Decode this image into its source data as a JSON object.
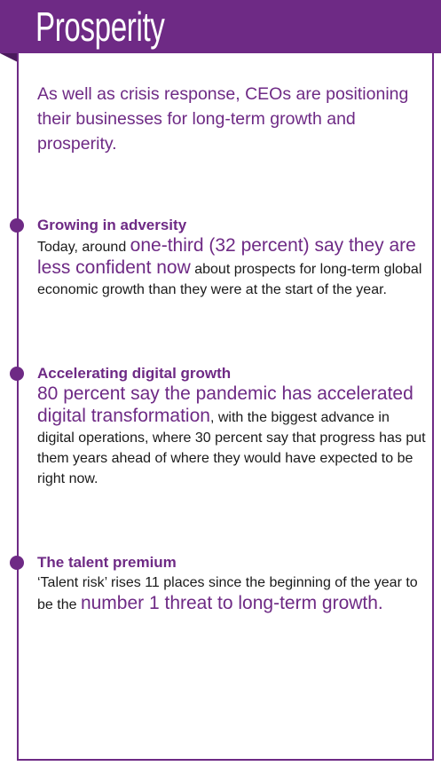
{
  "header": {
    "title": "Prosperity"
  },
  "intro": "As well as crisis response, CEOs are positioning their businesses for long-term growth and prosperity.",
  "sections": [
    {
      "title": "Growing in adversity",
      "pre": "Today, around ",
      "highlight": "one-third (32 percent) say they are less confident now",
      "post": " about prospects for long-term global economic growth than they were at the start of the year."
    },
    {
      "title": "Accelerating digital growth",
      "pre": "",
      "highlight": "80 percent say the pandemic has accelerated digital transformation",
      "post": ", with the biggest advance in digital operations, where 30 percent say that progress has put them years ahead of where they would have expected to be right now."
    },
    {
      "title": "The talent premium",
      "pre": "‘Talent risk’ rises 11 places since the beginning of the year to be the ",
      "highlight": "number 1 threat to long-term growth.",
      "post": ""
    }
  ],
  "colors": {
    "accent": "#6e2a85",
    "text": "#1a1a1a"
  }
}
